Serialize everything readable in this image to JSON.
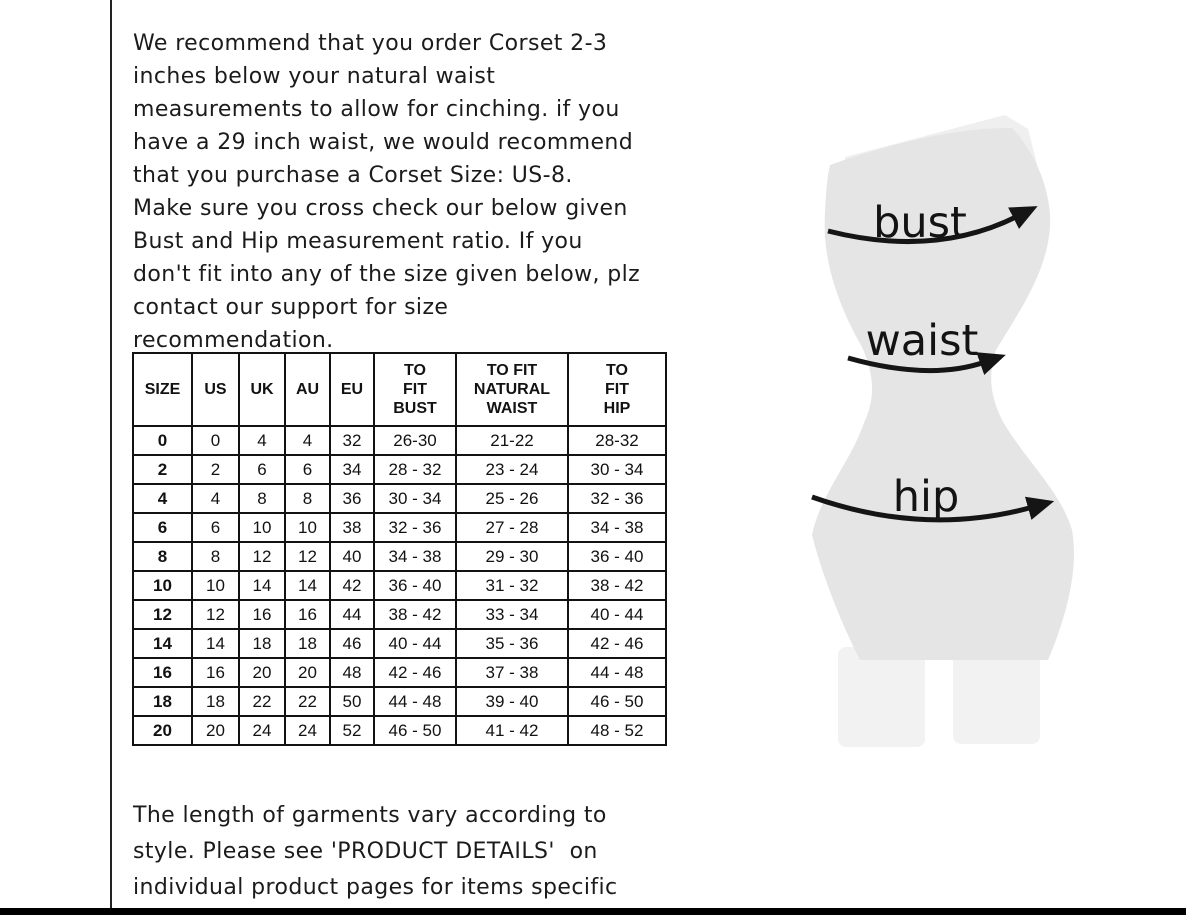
{
  "page": {
    "background": "#ffffff",
    "left_rule_color": "#222222",
    "bottom_bar_color": "#000000"
  },
  "intro_text": "We recommend that you order Corset 2-3\ninches below your natural waist\nmeasurements to allow for cinching. if you\nhave a 29 inch waist, we would recommend\nthat you purchase a Corset Size: US-8.\nMake sure you cross check our below given\nBust and Hip measurement ratio. If you\ndon't fit into any of the size given below, plz\ncontact our support for size\nrecommendation.",
  "size_table": {
    "headers": [
      "SIZE",
      "US",
      "UK",
      "AU",
      "EU",
      "TO\nFIT\nBUST",
      "TO FIT\nNATURAL\nWAIST",
      "TO\nFIT\nHIP"
    ],
    "rows": [
      [
        "0",
        "0",
        "4",
        "4",
        "32",
        "26-30",
        "21-22",
        "28-32"
      ],
      [
        "2",
        "2",
        "6",
        "6",
        "34",
        "28 - 32",
        "23 - 24",
        "30 - 34"
      ],
      [
        "4",
        "4",
        "8",
        "8",
        "36",
        "30 - 34",
        "25 - 26",
        "32 - 36"
      ],
      [
        "6",
        "6",
        "10",
        "10",
        "38",
        "32 - 36",
        "27 - 28",
        "34 - 38"
      ],
      [
        "8",
        "8",
        "12",
        "12",
        "40",
        "34 - 38",
        "29 - 30",
        "36 - 40"
      ],
      [
        "10",
        "10",
        "14",
        "14",
        "42",
        "36 - 40",
        "31 - 32",
        "38 - 42"
      ],
      [
        "12",
        "12",
        "16",
        "16",
        "44",
        "38 - 42",
        "33 - 34",
        "40 - 44"
      ],
      [
        "14",
        "14",
        "18",
        "18",
        "46",
        "40 - 44",
        "35 - 36",
        "42 - 46"
      ],
      [
        "16",
        "16",
        "20",
        "20",
        "48",
        "42 - 46",
        "37 - 38",
        "44 - 48"
      ],
      [
        "18",
        "18",
        "22",
        "22",
        "50",
        "44 - 48",
        "39 - 40",
        "46 - 50"
      ],
      [
        "20",
        "20",
        "24",
        "24",
        "52",
        "46 - 50",
        "41 - 42",
        "48 - 52"
      ]
    ]
  },
  "length_note": "The length of garments vary according to\nstyle. Please see 'PRODUCT DETAILS'  on\nindividual product pages for items specific\nlength measurements.",
  "figure": {
    "labels": {
      "bust": "bust",
      "waist": "waist",
      "hip": "hip"
    },
    "colors": {
      "body": "#e5e5e5",
      "body_light": "#efefef",
      "legs": "#f2f2f2",
      "arrow": "#151515"
    }
  }
}
